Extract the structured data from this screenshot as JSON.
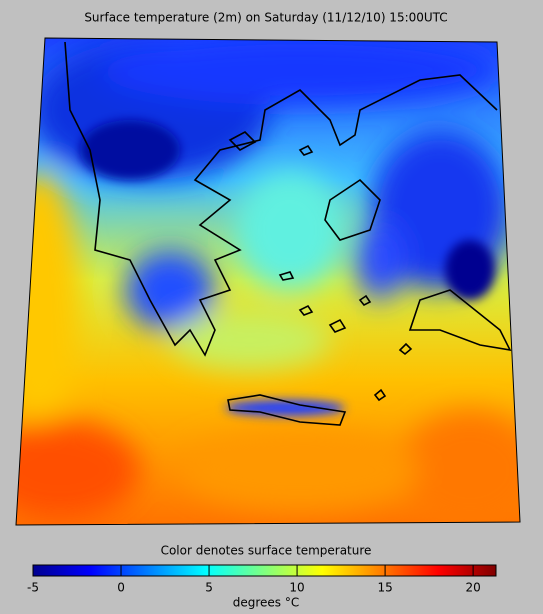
{
  "title": "Surface temperature (2m) on Saturday (11/12/10) 15:00UTC",
  "colorbar": {
    "caption": "Color denotes surface temperature",
    "label": "degrees °C",
    "lim": [
      -5,
      21.3
    ],
    "ticks": [
      -5,
      0,
      5,
      10,
      15,
      20
    ],
    "colormap": [
      "#00008f",
      "#0000ff",
      "#0080ff",
      "#00ffff",
      "#80ff80",
      "#ffff00",
      "#ff8000",
      "#ff0000",
      "#800000"
    ]
  }
}
